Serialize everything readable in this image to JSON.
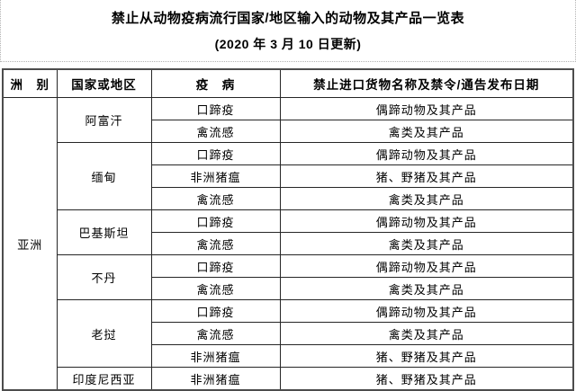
{
  "title": "禁止从动物疫病流行国家/地区输入的动物及其产品一览表",
  "subtitle": "(2020 年 3 月 10 日更新)",
  "table": {
    "headers": [
      "洲　别",
      "国家或地区",
      "疫　病",
      "禁止进口货物名称及禁令/通告发布日期"
    ],
    "continent": "亚洲",
    "groups": [
      {
        "country": "阿富汗",
        "rows": [
          {
            "disease": "口蹄疫",
            "goods": "偶蹄动物及其产品"
          },
          {
            "disease": "禽流感",
            "goods": "禽类及其产品"
          }
        ]
      },
      {
        "country": "缅甸",
        "rows": [
          {
            "disease": "口蹄疫",
            "goods": "偶蹄动物及其产品"
          },
          {
            "disease": "非洲猪瘟",
            "goods": "猪、野猪及其产品"
          },
          {
            "disease": "禽流感",
            "goods": "禽类及其产品"
          }
        ]
      },
      {
        "country": "巴基斯坦",
        "rows": [
          {
            "disease": "口蹄疫",
            "goods": "偶蹄动物及其产品"
          },
          {
            "disease": "禽流感",
            "goods": "禽类及其产品"
          }
        ]
      },
      {
        "country": "不丹",
        "rows": [
          {
            "disease": "口蹄疫",
            "goods": "偶蹄动物及其产品"
          },
          {
            "disease": "禽流感",
            "goods": "禽类及其产品"
          }
        ]
      },
      {
        "country": "老挝",
        "rows": [
          {
            "disease": "口蹄疫",
            "goods": "偶蹄动物及其产品"
          },
          {
            "disease": "禽流感",
            "goods": "禽类及其产品"
          },
          {
            "disease": "非洲猪瘟",
            "goods": "猪、野猪及其产品"
          }
        ]
      },
      {
        "country": "印度尼西亚",
        "rows": [
          {
            "disease": "非洲猪瘟",
            "goods": "猪、野猪及其产品"
          }
        ]
      }
    ],
    "border_color": "#262626",
    "outer_border_color": "#4d4d4d"
  }
}
